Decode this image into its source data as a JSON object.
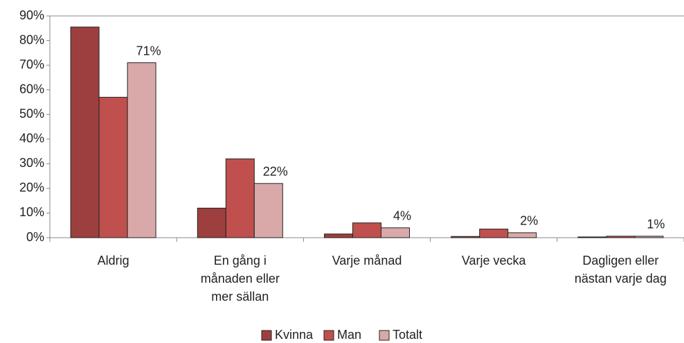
{
  "chart_data": {
    "type": "bar",
    "categories": [
      "Aldrig",
      "En gång i\nmånaden eller\nmer sällan",
      "Varje månad",
      "Varje vecka",
      "Dagligen eller\nnästan varje dag"
    ],
    "series": [
      {
        "name": "Kvinna",
        "color": "#9e3f3f",
        "values": [
          85.5,
          12,
          1.5,
          0.5,
          0.3
        ]
      },
      {
        "name": "Man",
        "color": "#c0504d",
        "values": [
          57,
          32,
          6,
          3.5,
          0.6
        ]
      },
      {
        "name": "Totalt",
        "color": "#d9a9aa",
        "values": [
          71,
          22,
          4,
          2,
          0.6
        ],
        "value_labels": [
          "71%",
          "22%",
          "4%",
          "2%",
          "1%"
        ]
      }
    ],
    "ylim": [
      0,
      90
    ],
    "yticks": [
      {
        "value": 0,
        "label": "0%"
      },
      {
        "value": 10,
        "label": "10%"
      },
      {
        "value": 20,
        "label": "20%"
      },
      {
        "value": 30,
        "label": "30%"
      },
      {
        "value": 40,
        "label": "40%"
      },
      {
        "value": 50,
        "label": "50%"
      },
      {
        "value": 60,
        "label": "60%"
      },
      {
        "value": 70,
        "label": "70%"
      },
      {
        "value": 80,
        "label": "80%"
      },
      {
        "value": 90,
        "label": "90%"
      }
    ],
    "grid": false,
    "legend": "bottom"
  }
}
